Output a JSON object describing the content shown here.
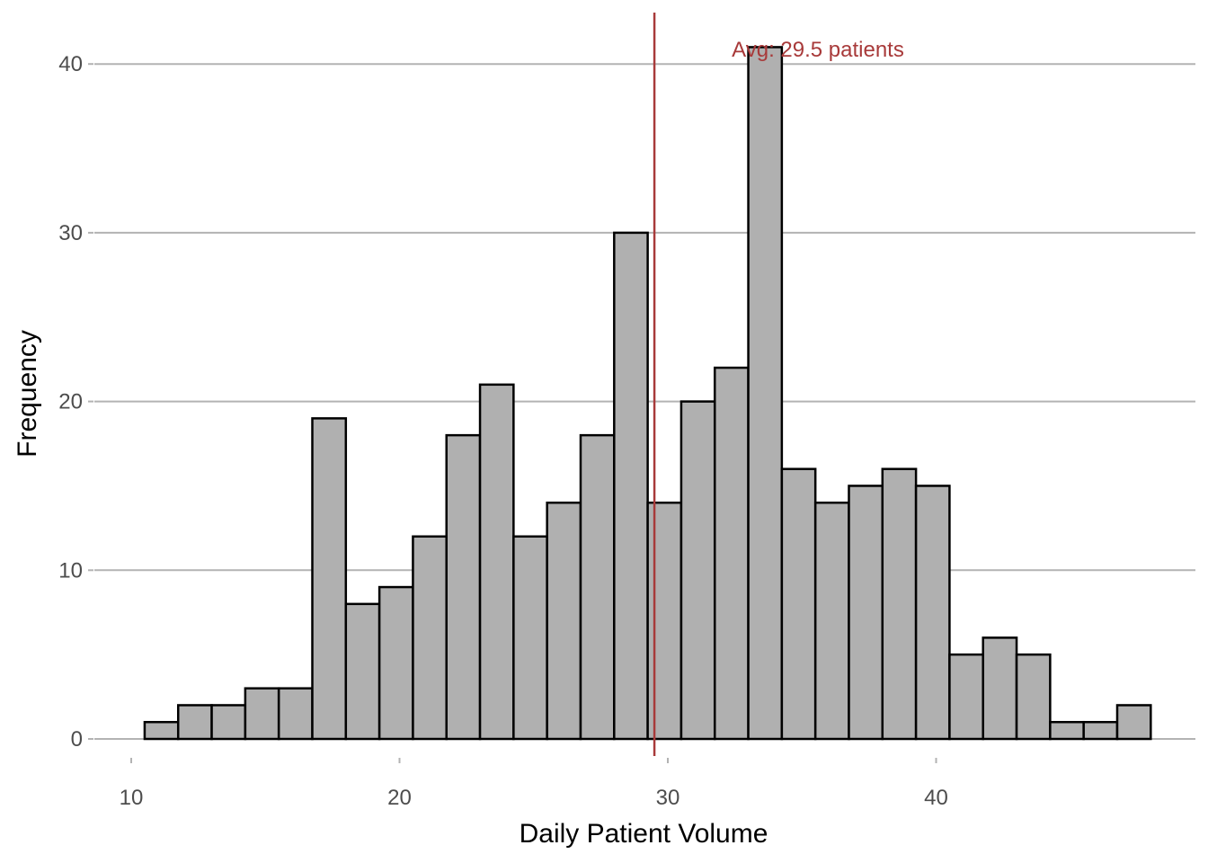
{
  "chart_data": {
    "type": "bar",
    "subtype": "histogram",
    "title": "",
    "xlabel": "Daily Patient Volume",
    "ylabel": "Frequency",
    "xlim": [
      9.3,
      48.6
    ],
    "ylim": [
      0,
      43
    ],
    "x_ticks": [
      10,
      20,
      30,
      40
    ],
    "y_ticks": [
      0,
      10,
      20,
      30,
      40
    ],
    "grid": {
      "horizontal": true,
      "vertical": false
    },
    "bin_width": 1.25,
    "bins": [
      {
        "x0": 10.5,
        "x1": 11.75,
        "count": 1
      },
      {
        "x0": 11.75,
        "x1": 13.0,
        "count": 2
      },
      {
        "x0": 13.0,
        "x1": 14.25,
        "count": 2
      },
      {
        "x0": 14.25,
        "x1": 15.5,
        "count": 3
      },
      {
        "x0": 15.5,
        "x1": 16.75,
        "count": 3
      },
      {
        "x0": 16.75,
        "x1": 18.0,
        "count": 19
      },
      {
        "x0": 18.0,
        "x1": 19.25,
        "count": 8
      },
      {
        "x0": 19.25,
        "x1": 20.5,
        "count": 9
      },
      {
        "x0": 20.5,
        "x1": 21.75,
        "count": 12
      },
      {
        "x0": 21.75,
        "x1": 23.0,
        "count": 18
      },
      {
        "x0": 23.0,
        "x1": 24.25,
        "count": 21
      },
      {
        "x0": 24.25,
        "x1": 25.5,
        "count": 12
      },
      {
        "x0": 25.5,
        "x1": 26.75,
        "count": 14
      },
      {
        "x0": 26.75,
        "x1": 28.0,
        "count": 18
      },
      {
        "x0": 28.0,
        "x1": 29.25,
        "count": 30
      },
      {
        "x0": 29.25,
        "x1": 30.5,
        "count": 14
      },
      {
        "x0": 30.5,
        "x1": 31.75,
        "count": 20
      },
      {
        "x0": 31.75,
        "x1": 33.0,
        "count": 22
      },
      {
        "x0": 33.0,
        "x1": 34.25,
        "count": 41
      },
      {
        "x0": 34.25,
        "x1": 35.5,
        "count": 16
      },
      {
        "x0": 35.5,
        "x1": 36.75,
        "count": 14
      },
      {
        "x0": 36.75,
        "x1": 38.0,
        "count": 15
      },
      {
        "x0": 38.0,
        "x1": 39.25,
        "count": 16
      },
      {
        "x0": 39.25,
        "x1": 40.5,
        "count": 15
      },
      {
        "x0": 40.5,
        "x1": 41.75,
        "count": 5
      },
      {
        "x0": 41.75,
        "x1": 43.0,
        "count": 6
      },
      {
        "x0": 43.0,
        "x1": 44.25,
        "count": 5
      },
      {
        "x0": 44.25,
        "x1": 45.5,
        "count": 1
      },
      {
        "x0": 45.5,
        "x1": 46.75,
        "count": 1
      },
      {
        "x0": 46.75,
        "x1": 48.0,
        "count": 2
      }
    ],
    "reference_line": {
      "x": 29.5,
      "label": "Avg: 29.5 patients",
      "color": "#a83a3a"
    },
    "colors": {
      "bar_fill": "#b0b0b0",
      "bar_outline": "#000000",
      "gridline": "#b3b3b3"
    }
  }
}
